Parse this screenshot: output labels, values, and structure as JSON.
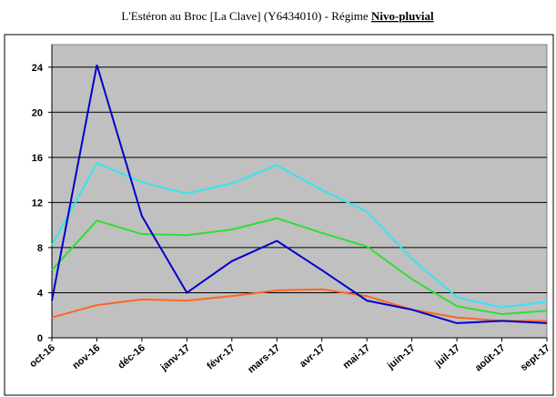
{
  "chart_data": {
    "type": "line",
    "title": "L'Estéron au Broc [La Clave] (Y6434010) - Régime",
    "title_emphasis": "Nivo-pluvial",
    "categories": [
      "oct-16",
      "nov-16",
      "déc-16",
      "janv-17",
      "févr-17",
      "mars-17",
      "avr-17",
      "mai-17",
      "juin-17",
      "juil-17",
      "août-17",
      "sept-17"
    ],
    "series": [
      {
        "color": "#33e6f0",
        "values": [
          8.2,
          15.5,
          13.8,
          12.8,
          13.7,
          15.3,
          13.1,
          11.2,
          7.0,
          3.6,
          2.7,
          3.2
        ]
      },
      {
        "color": "#33dd33",
        "values": [
          6.0,
          10.4,
          9.2,
          9.1,
          9.6,
          10.6,
          9.3,
          8.1,
          5.2,
          2.8,
          2.1,
          2.4
        ]
      },
      {
        "color": "#ff6622",
        "values": [
          1.8,
          2.9,
          3.4,
          3.3,
          3.7,
          4.2,
          4.3,
          3.7,
          2.5,
          1.8,
          1.5,
          1.5
        ]
      },
      {
        "color": "#0000cc",
        "values": [
          3.3,
          24.2,
          10.8,
          4.0,
          6.8,
          8.6,
          6.0,
          3.3,
          2.5,
          1.3,
          1.5,
          1.3
        ]
      }
    ],
    "ylim": [
      0,
      26
    ],
    "yticks": [
      0,
      4,
      8,
      12,
      16,
      20,
      24
    ],
    "grid": true,
    "background": "#c0c0c0"
  }
}
